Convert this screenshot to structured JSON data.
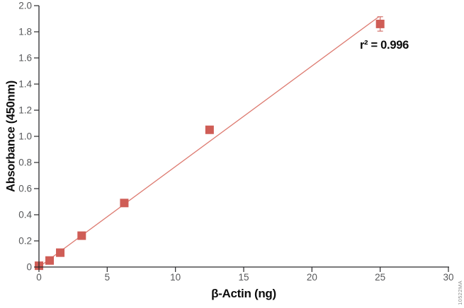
{
  "figure": {
    "watermark": "10522MA"
  },
  "chart_data": {
    "type": "scatter",
    "title": "",
    "xlabel": "β-Actin (ng)",
    "ylabel": "Absorbance (450nm)",
    "xlim": [
      0,
      30
    ],
    "ylim": [
      0,
      2.0
    ],
    "grid": false,
    "legend": "none",
    "x_ticks": [
      0,
      5,
      10,
      15,
      20,
      25,
      30
    ],
    "x_tick_labels": [
      "0",
      "5",
      "10",
      "15",
      "20",
      "25",
      "30"
    ],
    "y_ticks": [
      0,
      0.2,
      0.4,
      0.6,
      0.8,
      1.0,
      1.2,
      1.4,
      1.6,
      1.8,
      2.0
    ],
    "y_tick_labels": [
      "0",
      "0.2",
      "0.4",
      "0.6",
      "0.8",
      "1.0",
      "1.2",
      "1.4",
      "1.6",
      "1.8",
      "2.0"
    ],
    "colors": {
      "axis": "#2a2a2c",
      "tick_text": "#57585a",
      "label_text": "#0c0c0c",
      "marker": "#cf5d56",
      "fit_line": "#dd7a70",
      "error_bar": "#d2706a"
    },
    "series": [
      {
        "name": "beta-actin-standard-points",
        "type": "scatter",
        "marker": "square",
        "color": "#cf5d56",
        "errorbar_color": "#d2706a",
        "points": [
          {
            "x": 0,
            "y": 0.01
          },
          {
            "x": 0.78,
            "y": 0.05
          },
          {
            "x": 1.56,
            "y": 0.11
          },
          {
            "x": 3.13,
            "y": 0.24
          },
          {
            "x": 6.25,
            "y": 0.49
          },
          {
            "x": 12.5,
            "y": 1.05
          },
          {
            "x": 25,
            "y": 1.86,
            "yerr": 0.055
          }
        ]
      },
      {
        "name": "linear-fit",
        "type": "line",
        "color": "#dd7a70",
        "points": [
          {
            "x": 0,
            "y": 0.0
          },
          {
            "x": 24.9,
            "y": 1.915
          }
        ]
      }
    ],
    "annotations": [
      {
        "text": "r² = 0.996",
        "x": 25.3,
        "y": 1.67
      }
    ]
  }
}
